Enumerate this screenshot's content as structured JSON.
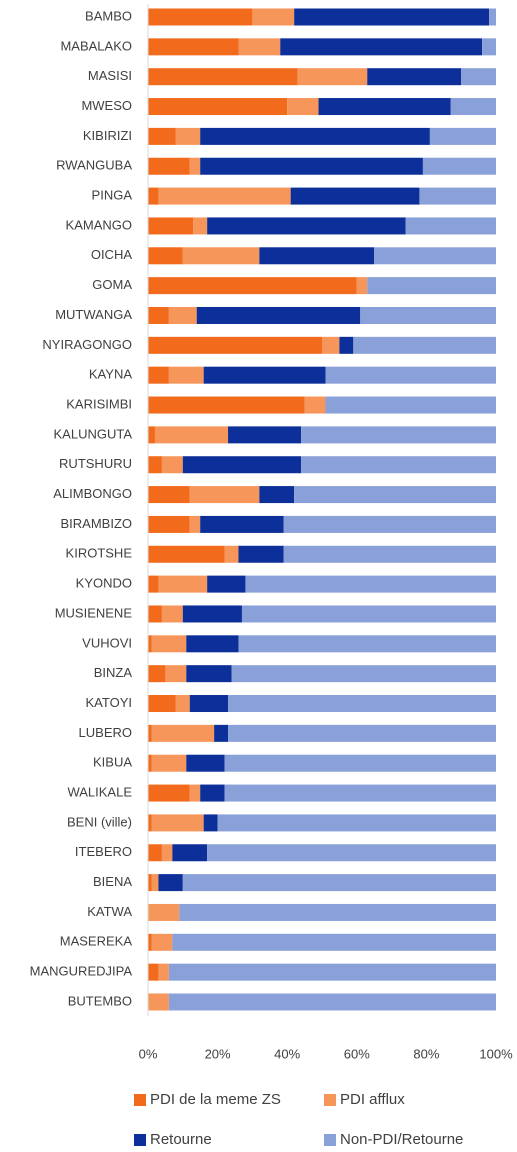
{
  "chart_data": {
    "type": "stacked-barh",
    "categories": [
      "BAMBO",
      "MABALAKO",
      "MASISI",
      "MWESO",
      "KIBIRIZI",
      "RWANGUBA",
      "PINGA",
      "KAMANGO",
      "OICHA",
      "GOMA",
      "MUTWANGA",
      "NYIRAGONGO",
      "KAYNA",
      "KARISIMBI",
      "KALUNGUTA",
      "RUTSHURU",
      "ALIMBONGO",
      "BIRAMBIZO",
      "KIROTSHE",
      "KYONDO",
      "MUSIENENE",
      "VUHOVI",
      "BINZA",
      "KATOYI",
      "LUBERO",
      "KIBUA",
      "WALIKALE",
      "BENI (ville)",
      "ITEBERO",
      "BIENA",
      "KATWA",
      "MASEREKA",
      "MANGUREDJIPA",
      "BUTEMBO"
    ],
    "series": [
      {
        "name": "PDI de la meme ZS",
        "color": "#f26a1b",
        "values": [
          30,
          26,
          43,
          40,
          8,
          12,
          3,
          13,
          10,
          60,
          6,
          50,
          6,
          45,
          2,
          4,
          12,
          12,
          22,
          3,
          4,
          1,
          5,
          8,
          1,
          1,
          12,
          1,
          4,
          1,
          0,
          1,
          3,
          0
        ]
      },
      {
        "name": "PDI afflux",
        "color": "#f7965b",
        "values": [
          12,
          12,
          20,
          9,
          7,
          3,
          38,
          4,
          22,
          3,
          8,
          5,
          10,
          6,
          21,
          6,
          20,
          3,
          4,
          14,
          6,
          10,
          6,
          4,
          18,
          10,
          3,
          15,
          3,
          2,
          9,
          6,
          3,
          6
        ]
      },
      {
        "name": "Retourne",
        "color": "#0d2f9a",
        "values": [
          56,
          58,
          27,
          38,
          66,
          64,
          37,
          57,
          33,
          0,
          47,
          4,
          35,
          0,
          21,
          34,
          10,
          24,
          13,
          11,
          17,
          15,
          13,
          11,
          4,
          11,
          7,
          4,
          10,
          7,
          0,
          0,
          0,
          0
        ]
      },
      {
        "name": "Non-PDI/Retourne",
        "color": "#8aa0d8",
        "values": [
          2,
          4,
          10,
          13,
          19,
          21,
          22,
          26,
          35,
          37,
          39,
          41,
          49,
          49,
          56,
          56,
          58,
          61,
          61,
          72,
          73,
          74,
          76,
          77,
          77,
          78,
          78,
          80,
          83,
          90,
          91,
          93,
          94,
          94
        ]
      }
    ],
    "xlim": [
      0,
      100
    ],
    "xticks": [
      {
        "value": 0,
        "label": "0%"
      },
      {
        "value": 20,
        "label": "20%"
      },
      {
        "value": 40,
        "label": "40%"
      },
      {
        "value": 60,
        "label": "60%"
      },
      {
        "value": 80,
        "label": "80%"
      },
      {
        "value": 100,
        "label": "100%"
      }
    ],
    "grid": false,
    "legend": "bottom"
  }
}
